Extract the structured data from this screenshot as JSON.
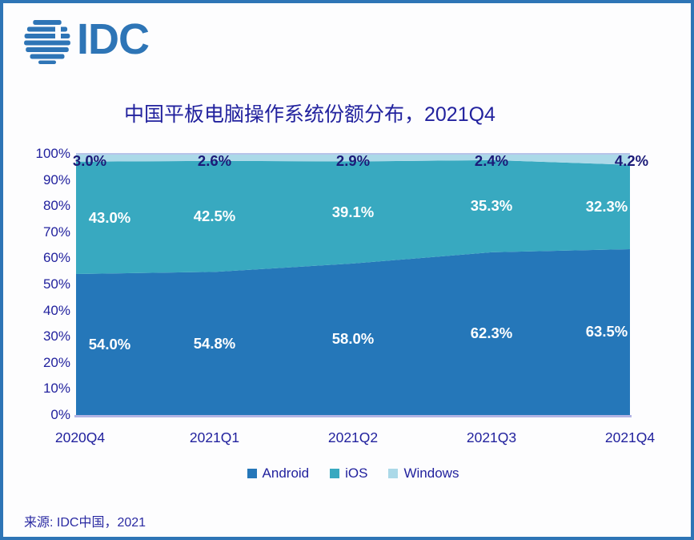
{
  "frame": {
    "border_color": "#2e75b6",
    "background": "#fdfdfe"
  },
  "logo": {
    "text": "IDC",
    "color": "#2e75b6",
    "icon": "globe-stripes-icon"
  },
  "title": {
    "text": "中国平板电脑操作系统份额分布，2021Q4",
    "color": "#22229e"
  },
  "source": {
    "text": "来源: IDC中国，2021"
  },
  "axis": {
    "y_tick_values": [
      100,
      90,
      80,
      70,
      60,
      50,
      40,
      30,
      20,
      10,
      0
    ],
    "tick_suffix": "%",
    "label_color": "#22229e",
    "baseline_color": "#b2b4e4",
    "topline_color": "#b7c3e9"
  },
  "chart_data": {
    "type": "area",
    "stacked": "percent",
    "title": "中国平板电脑操作系统份额分布，2021Q4",
    "categories": [
      "2020Q4",
      "2021Q1",
      "2021Q2",
      "2021Q3",
      "2021Q4"
    ],
    "series": [
      {
        "name": "Android",
        "values": [
          54.0,
          54.8,
          58.0,
          62.3,
          63.5
        ],
        "color": "#2577b9",
        "label_color": "#ffffff"
      },
      {
        "name": "iOS",
        "values": [
          43.0,
          42.5,
          39.1,
          35.3,
          32.3
        ],
        "color": "#38a9c0",
        "label_color": "#ffffff"
      },
      {
        "name": "Windows",
        "values": [
          3.0,
          2.6,
          2.9,
          2.4,
          4.2
        ],
        "color": "#abd9e8",
        "label_color": "#1b1b78"
      }
    ],
    "ylim": [
      0,
      100
    ],
    "gridlines": false,
    "legend_position": "bottom",
    "data_labels": "shown with one decimal and % suffix"
  }
}
